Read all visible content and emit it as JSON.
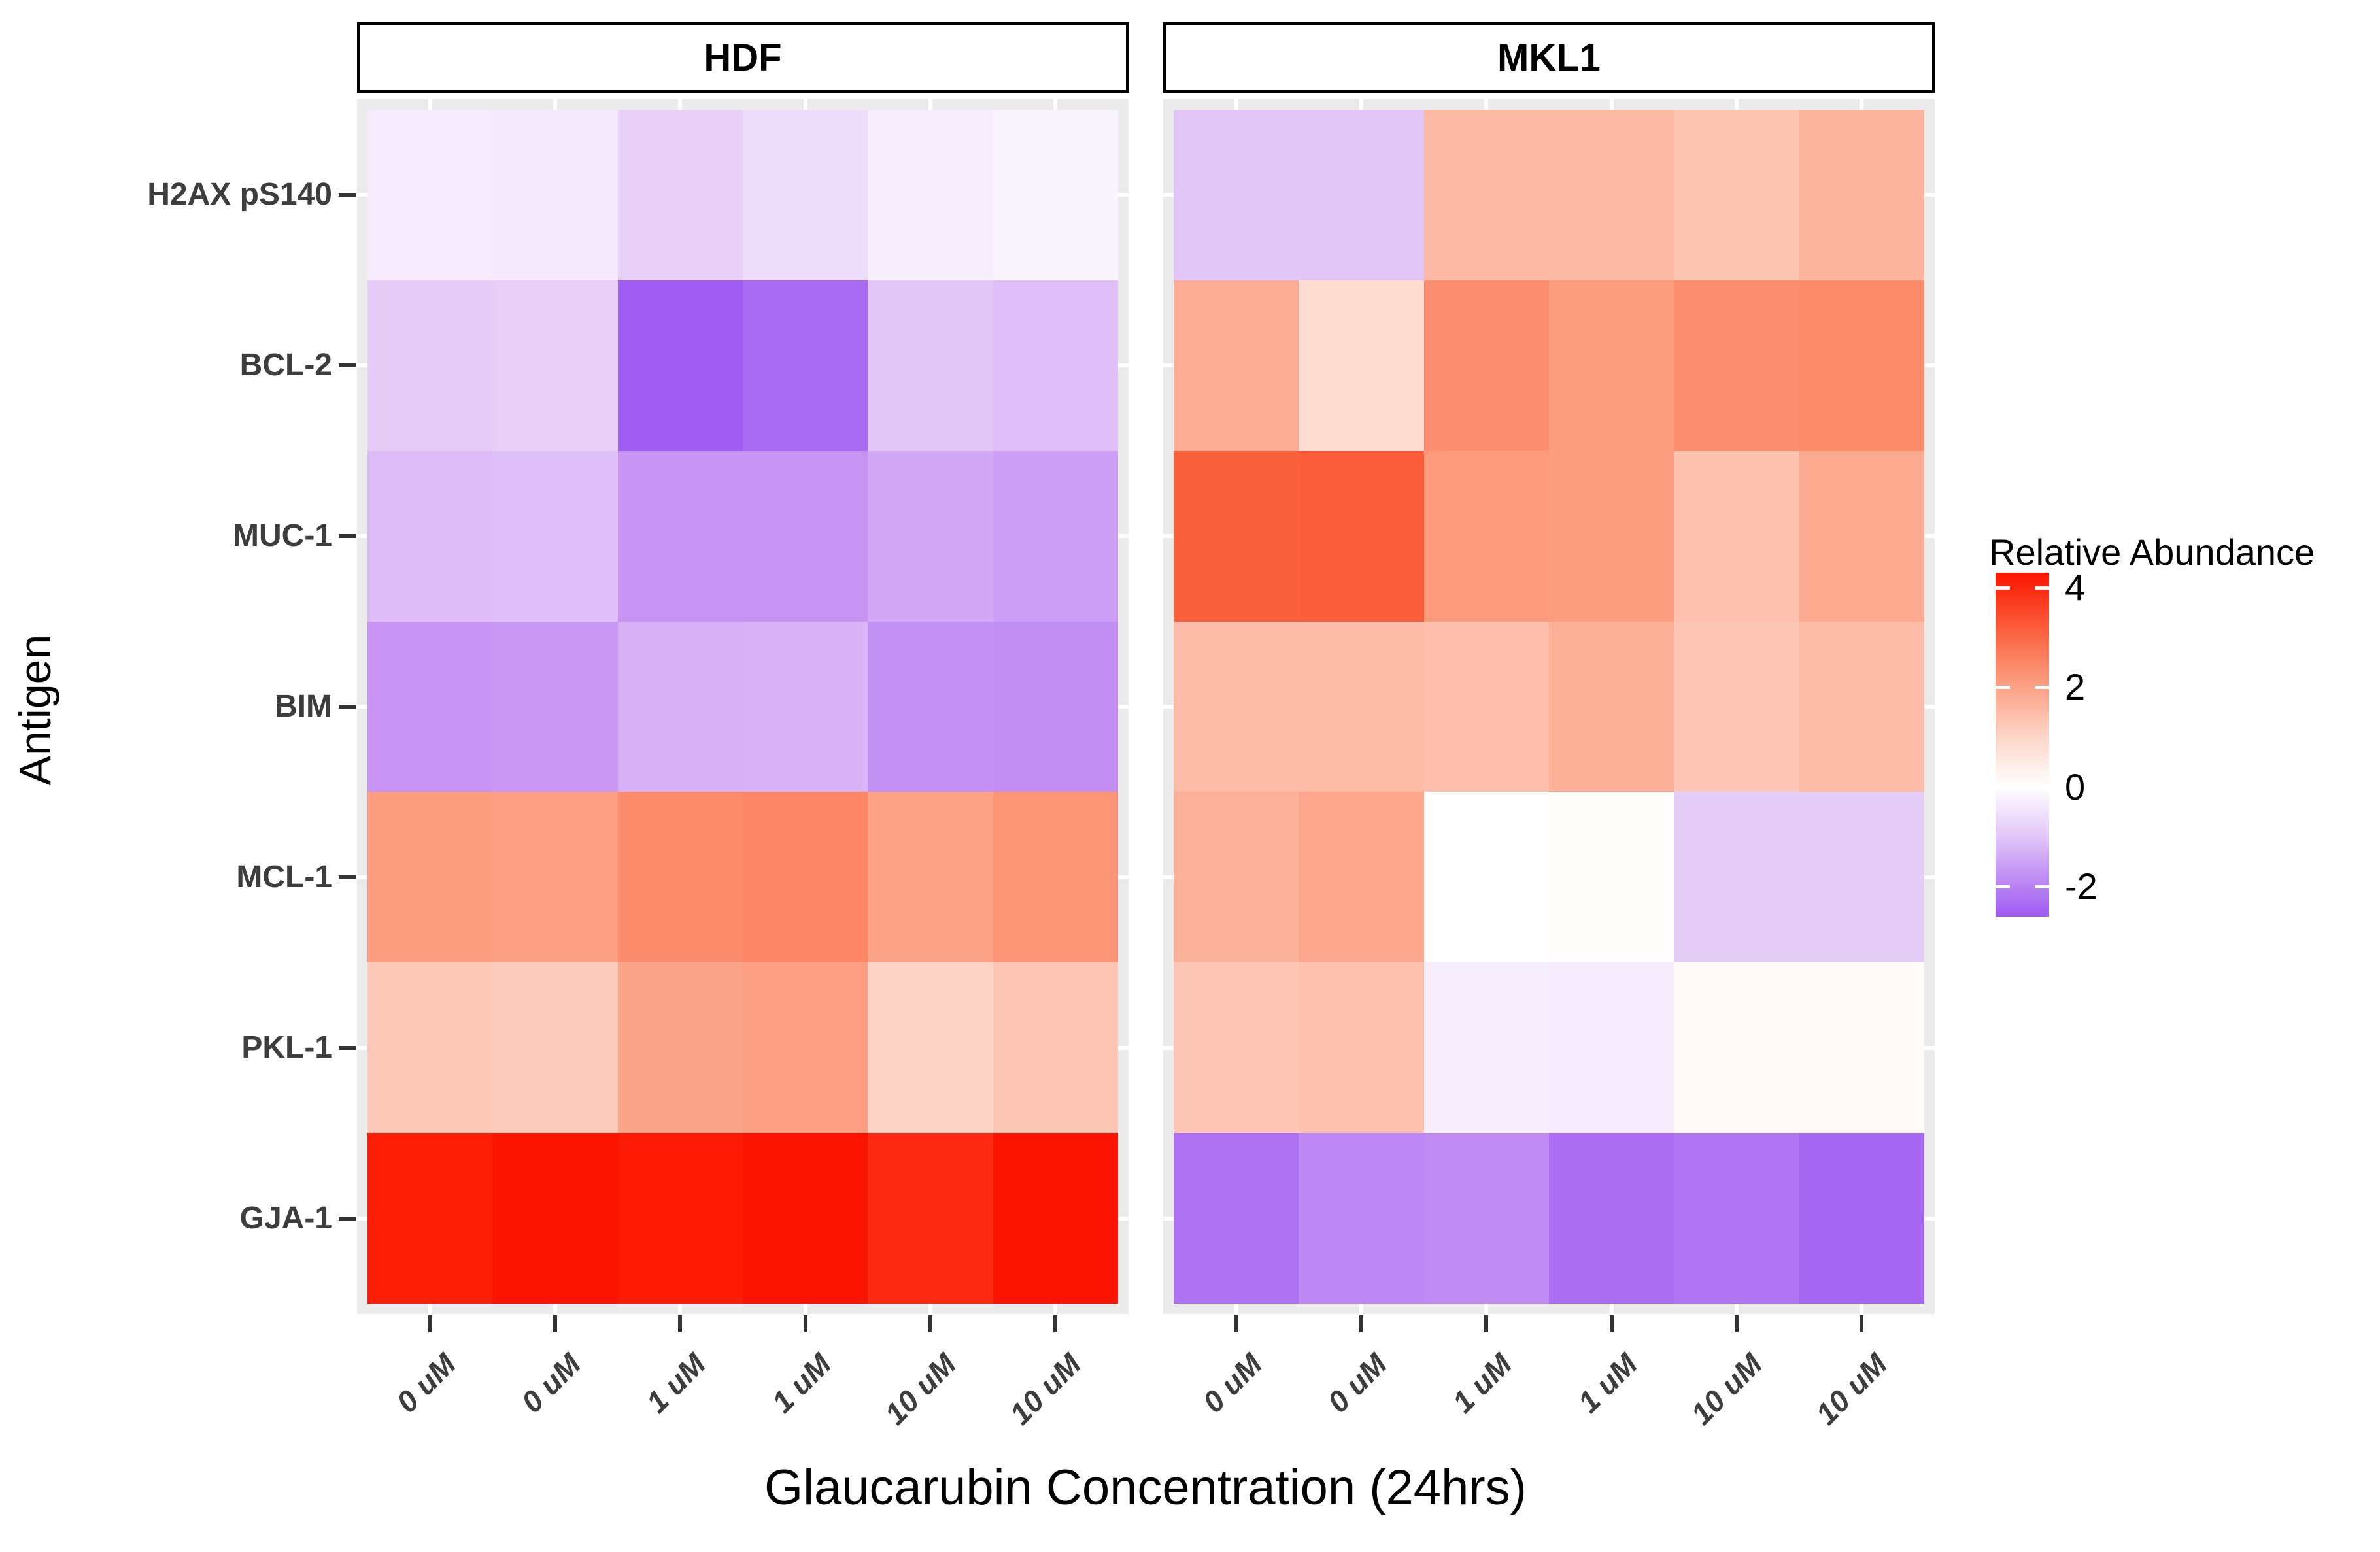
{
  "figure": {
    "background": "#ffffff",
    "panel_background": "#ebebeb",
    "gridline_color": "#ffffff",
    "tick_color": "#333333",
    "axis_text_color": "#3d3d3d"
  },
  "facets": [
    {
      "label": "HDF"
    },
    {
      "label": "MKL1"
    }
  ],
  "y_axis": {
    "title": "Antigen",
    "labels": [
      "H2AX pS140",
      "BCL-2",
      "MUC-1",
      "BIM",
      "MCL-1",
      "PKL-1",
      "GJA-1"
    ]
  },
  "x_axis": {
    "title": "Glaucarubin Concentration (24hrs)",
    "labels": [
      "0 uM",
      "0 uM",
      "1 uM",
      "1 uM",
      "10 uM",
      "10 uM"
    ]
  },
  "legend": {
    "title": "Relative Abundance",
    "ticks": [
      4,
      2,
      0,
      -2
    ]
  },
  "chart_data": {
    "type": "heatmap",
    "title": "",
    "xlabel": "Glaucarubin Concentration (24hrs)",
    "ylabel": "Antigen",
    "value_label": "Relative Abundance",
    "columns": [
      "0 uM",
      "0 uM",
      "1 uM",
      "1 uM",
      "10 uM",
      "10 uM"
    ],
    "rows": [
      "H2AX pS140",
      "BCL-2",
      "MUC-1",
      "BIM",
      "MCL-1",
      "PKL-1",
      "GJA-1"
    ],
    "legend_ticks": [
      4,
      2,
      0,
      -2
    ],
    "color_scale": {
      "domain": [
        -2.6,
        4.3
      ],
      "mid": 0,
      "positive_stops": [
        [
          0,
          "#FFFFFF"
        ],
        [
          0.25,
          "#FDD2C4"
        ],
        [
          0.5,
          "#FC9A7C"
        ],
        [
          0.75,
          "#FB5C38"
        ],
        [
          1,
          "#FD1400"
        ]
      ],
      "negative_stops": [
        [
          0,
          "#FFFFFF"
        ],
        [
          0.35,
          "#E5CCF8"
        ],
        [
          0.65,
          "#C795F4"
        ],
        [
          1,
          "#9D5BF1"
        ]
      ]
    },
    "facets": [
      {
        "name": "HDF",
        "values": [
          [
            -0.35,
            -0.4,
            -0.85,
            -0.6,
            -0.3,
            -0.2
          ],
          [
            -0.9,
            -0.85,
            -2.55,
            -2.35,
            -1.0,
            -1.1
          ],
          [
            -1.15,
            -1.1,
            -1.7,
            -1.7,
            -1.45,
            -1.55
          ],
          [
            -1.7,
            -1.65,
            -1.3,
            -1.25,
            -1.75,
            -1.8
          ],
          [
            2.1,
            2.05,
            2.4,
            2.5,
            2.0,
            2.25
          ],
          [
            1.25,
            1.2,
            1.95,
            2.05,
            1.05,
            1.3
          ],
          [
            4.15,
            4.3,
            4.2,
            4.3,
            4.0,
            4.3
          ]
        ]
      },
      {
        "name": "MKL1",
        "values": [
          [
            -1.0,
            -1.0,
            1.55,
            1.55,
            1.35,
            1.65
          ],
          [
            1.8,
            0.8,
            2.35,
            2.1,
            2.35,
            2.4
          ],
          [
            3.15,
            3.2,
            2.15,
            2.1,
            1.4,
            1.85
          ],
          [
            1.5,
            1.5,
            1.45,
            1.75,
            1.3,
            1.5
          ],
          [
            1.7,
            1.9,
            0.0,
            0.05,
            -0.9,
            -0.9
          ],
          [
            1.3,
            1.4,
            -0.3,
            -0.35,
            0.15,
            0.15
          ],
          [
            -2.25,
            -1.9,
            -1.85,
            -2.3,
            -2.2,
            -2.4
          ]
        ]
      }
    ]
  }
}
